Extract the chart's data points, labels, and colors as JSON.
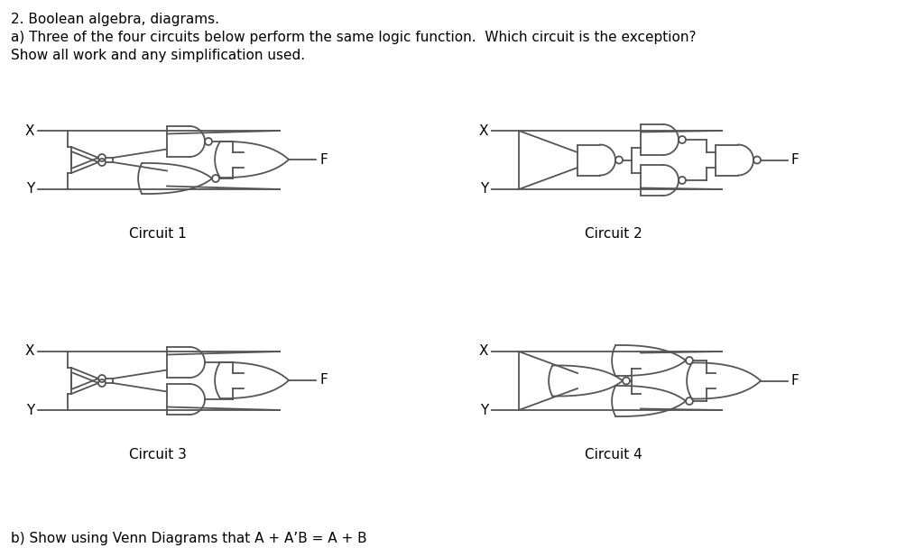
{
  "title_line1": "2. Boolean algebra, diagrams.",
  "title_line2": "a) Three of the four circuits below perform the same logic function.  Which circuit is the exception?",
  "title_line3": "Show all work and any simplification used.",
  "circuit_labels": [
    "Circuit 1",
    "Circuit 2",
    "Circuit 3",
    "Circuit 4"
  ],
  "bottom_text": "b) Show using Venn Diagrams that A + A’B = A + B",
  "line_color": "#555555",
  "text_color": "#000000",
  "bg_color": "#ffffff",
  "lw": 1.3,
  "fontsize": 11
}
